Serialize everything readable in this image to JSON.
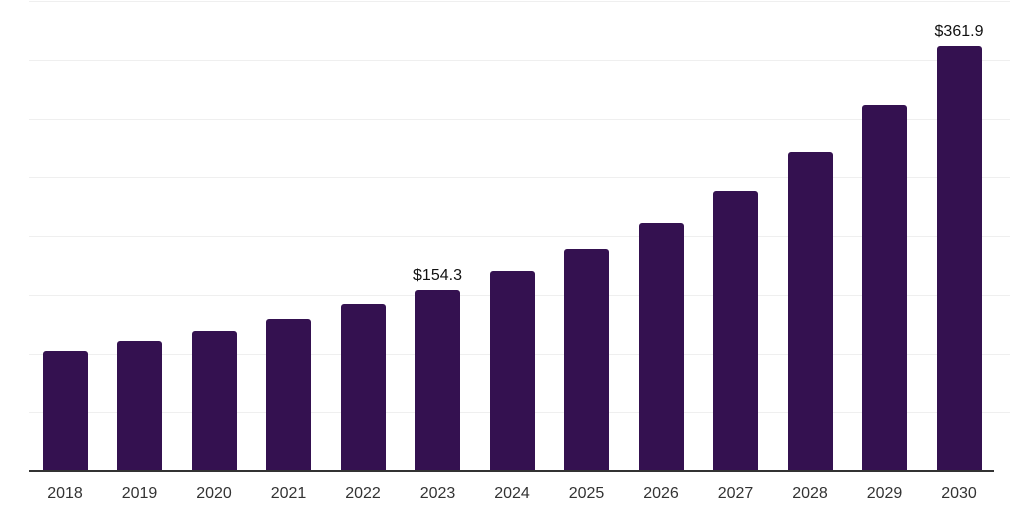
{
  "chart_data": {
    "type": "bar",
    "title": "",
    "xlabel": "",
    "ylabel": "",
    "categories": [
      "2018",
      "2019",
      "2020",
      "2021",
      "2022",
      "2023",
      "2024",
      "2025",
      "2026",
      "2027",
      "2028",
      "2029",
      "2030"
    ],
    "values": [
      102.1,
      110.9,
      119.1,
      129.6,
      142.3,
      154.3,
      170.0,
      189.0,
      210.7,
      238.2,
      271.6,
      311.5,
      361.9
    ],
    "data_labels": [
      {
        "index": 5,
        "text": "$154.3"
      },
      {
        "index": 12,
        "text": "$361.9"
      }
    ],
    "value_prefix": "$",
    "ylim": [
      0,
      400
    ],
    "grid_step": 50,
    "grid": "horizontal-only",
    "legend": "none",
    "y_axis_labels_visible": false,
    "colors": {
      "bar": "#341150",
      "grid": "#efefef",
      "axis_line": "#333333",
      "tick_label": "#333333",
      "data_label": "#111111",
      "background": "#ffffff"
    }
  }
}
